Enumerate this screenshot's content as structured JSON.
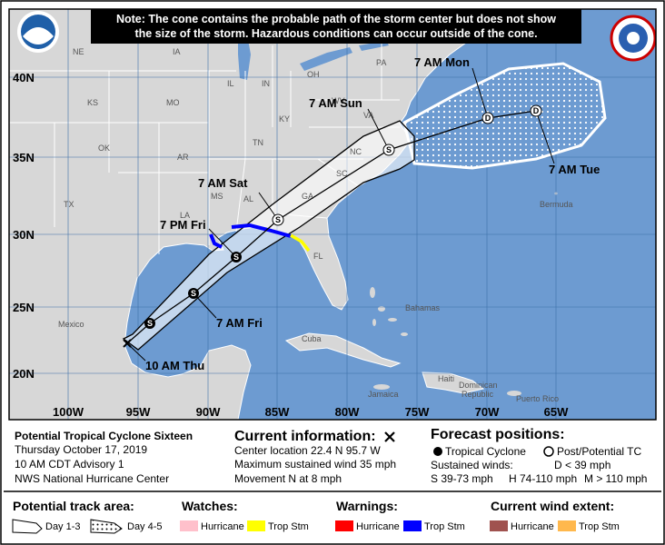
{
  "note": [
    "Note: The cone contains the probable path of the storm center but does not show",
    "the size of the storm. Hazardous conditions can occur outside of the cone."
  ],
  "latitude_labels": [
    "40N",
    "35N",
    "30N",
    "25N",
    "20N"
  ],
  "longitude_labels": [
    "100W",
    "95W",
    "90W",
    "85W",
    "80W",
    "75W",
    "70W",
    "65W"
  ],
  "region_labels": [
    "NE",
    "IA",
    "IL",
    "IN",
    "OH",
    "PA",
    "KS",
    "MO",
    "KY",
    "WV",
    "VA",
    "OK",
    "AR",
    "TN",
    "NC",
    "SC",
    "TX",
    "MS",
    "AL",
    "GA",
    "LA",
    "FL",
    "Mexico",
    "Cuba",
    "Bahamas",
    "Jamaica",
    "Haiti",
    "Dominican",
    "Republic",
    "Puerto Rico",
    "Bermuda"
  ],
  "forecast_labels": [
    "10 AM Thu",
    "7 AM Fri",
    "7 PM Fri",
    "7 AM Sat",
    "7 AM Sun",
    "7 AM Mon",
    "7 AM Tue"
  ],
  "markers": [
    "S",
    "S",
    "S",
    "S",
    "S",
    "D",
    "D"
  ],
  "info": {
    "storm": [
      "Potential Tropical Cyclone Sixteen",
      "Thursday October 17, 2019",
      "10 AM CDT Advisory 1",
      "NWS National Hurricane Center"
    ],
    "current_title": "Current information:",
    "current": [
      "Center location 22.4 N 95.7 W",
      "Maximum sustained wind 35 mph",
      "Movement N at 8 mph"
    ],
    "forecast_title": "Forecast positions:",
    "forecast_types": [
      "Tropical Cyclone",
      "Post/Potential TC"
    ],
    "winds_title": "Sustained winds:",
    "winds": [
      "D < 39 mph",
      "S 39-73 mph",
      "H 74-110 mph",
      "M > 110 mph"
    ]
  },
  "legend": {
    "track_title": "Potential track area:",
    "track": [
      "Day 1-3",
      "Day 4-5"
    ],
    "watches_title": "Watches:",
    "watches": [
      "Hurricane",
      "Trop Stm"
    ],
    "warnings_title": "Warnings:",
    "warnings": [
      "Hurricane",
      "Trop Stm"
    ],
    "wind_title": "Current wind extent:",
    "wind": [
      "Hurricane",
      "Trop Stm"
    ]
  }
}
